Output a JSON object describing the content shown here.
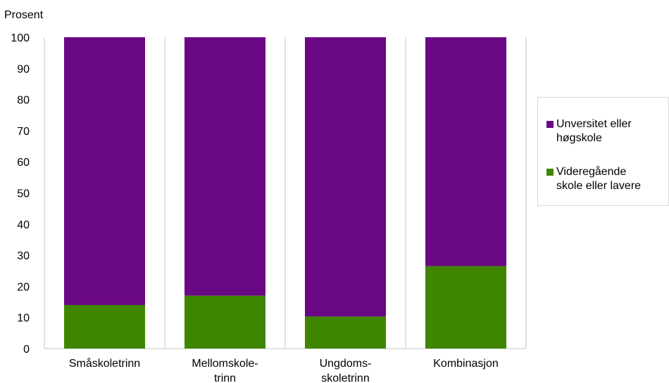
{
  "chart_data": {
    "type": "bar",
    "stacked": true,
    "categories": [
      "Småskoletrinn",
      "Mellomskole-trinn",
      "Ungdoms-skoletrinn",
      "Kombinasjon"
    ],
    "category_lines": [
      [
        "Småskoletrinn"
      ],
      [
        "Mellomskole-",
        "trinn"
      ],
      [
        "Ungdoms-",
        "skoletrinn"
      ],
      [
        "Kombinasjon"
      ]
    ],
    "series": [
      {
        "name": "Videregående skole eller lavere",
        "color": "#3f8600",
        "values": [
          14,
          17,
          10.3,
          26.5
        ]
      },
      {
        "name": "Unversitet eller høgskole",
        "color": "#6a0785",
        "values": [
          86,
          83,
          89.7,
          73.5
        ]
      }
    ],
    "ylabel": "Prosent",
    "ylim": [
      0,
      100
    ],
    "yticks": [
      "0",
      "10",
      "20",
      "30",
      "40",
      "50",
      "60",
      "70",
      "80",
      "90",
      "100"
    ],
    "grid": "vertical separators between categories",
    "legend_position": "right"
  },
  "legend": {
    "items": [
      {
        "label_lines": [
          "Unversitet eller",
          "høgskole"
        ],
        "color": "#6a0785"
      },
      {
        "label_lines": [
          "Videregående",
          "skole eller lavere"
        ],
        "color": "#3f8600"
      }
    ]
  }
}
